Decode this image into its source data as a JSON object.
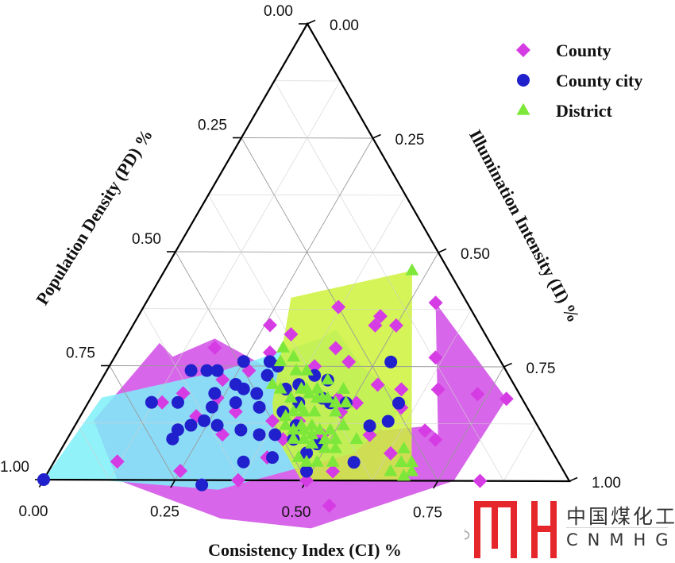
{
  "chart_data": {
    "type": "scatter",
    "subtype": "ternary",
    "axes": {
      "bottom": {
        "title": "Consistency Index (CI) %",
        "ticks": [
          "0.00",
          "0.25",
          "0.50",
          "0.75"
        ]
      },
      "left": {
        "title": "Population Density (PD) %",
        "ticks": [
          "0.00",
          "0.25",
          "0.50",
          "0.75",
          "1.00"
        ]
      },
      "right": {
        "title": "Illumination Intensity (II) %",
        "ticks": [
          "1.00",
          "0.75",
          "0.50",
          "0.25",
          "0.00"
        ]
      }
    },
    "grid": true,
    "legend_position": "top-right",
    "point_format": "[CI, PD, II]",
    "series": [
      {
        "name": "County",
        "marker": "diamond",
        "color": "#d63ce3",
        "fill_color": "#d14be6",
        "hull": [
          [
            0.55,
            0.06,
            0.39
          ],
          [
            0.7,
            0.2,
            0.1
          ],
          [
            0.67,
            0.21,
            0.12
          ],
          [
            0.59,
            0.3,
            0.11
          ],
          [
            0.17,
            0.52,
            0.31
          ],
          [
            0.11,
            0.62,
            0.27
          ],
          [
            0.07,
            0.63,
            0.3
          ],
          [
            0.03,
            0.84,
            0.13
          ],
          [
            0.14,
            0.86,
            0.0
          ],
          [
            0.33,
            0.75,
            0.0
          ],
          [
            0.5,
            0.6,
            0.0
          ],
          [
            0.78,
            0.22,
            0.0
          ],
          [
            0.79,
            0.03,
            0.18
          ]
        ],
        "points": [
          [
            0.5,
            0.16,
            0.34
          ],
          [
            0.37,
            0.25,
            0.38
          ],
          [
            0.55,
            0.06,
            0.39
          ],
          [
            0.46,
            0.2,
            0.34
          ],
          [
            0.46,
            0.18,
            0.36
          ],
          [
            0.12,
            0.84,
            0.04
          ],
          [
            0.25,
            0.73,
            0.02
          ],
          [
            0.37,
            0.63,
            0.0
          ],
          [
            0.51,
            0.54,
            0.05
          ],
          [
            0.5,
            0.5,
            0.0
          ],
          [
            0.54,
            0.44,
            0.02
          ],
          [
            0.4,
            0.55,
            0.05
          ],
          [
            0.41,
            0.5,
            0.09
          ],
          [
            0.37,
            0.5,
            0.13
          ],
          [
            0.29,
            0.56,
            0.15
          ],
          [
            0.29,
            0.61,
            0.1
          ],
          [
            0.22,
            0.64,
            0.14
          ],
          [
            0.24,
            0.58,
            0.18
          ],
          [
            0.23,
            0.55,
            0.22
          ],
          [
            0.17,
            0.64,
            0.19
          ],
          [
            0.14,
            0.69,
            0.17
          ],
          [
            0.27,
            0.49,
            0.24
          ],
          [
            0.18,
            0.53,
            0.29
          ],
          [
            0.26,
            0.4,
            0.34
          ],
          [
            0.31,
            0.37,
            0.32
          ],
          [
            0.39,
            0.36,
            0.25
          ],
          [
            0.41,
            0.3,
            0.29
          ],
          [
            0.45,
            0.29,
            0.26
          ],
          [
            0.47,
            0.35,
            0.18
          ],
          [
            0.51,
            0.32,
            0.17
          ],
          [
            0.57,
            0.33,
            0.1
          ],
          [
            0.53,
            0.26,
            0.21
          ],
          [
            0.42,
            0.45,
            0.13
          ],
          [
            0.48,
            0.42,
            0.1
          ],
          [
            0.49,
            0.36,
            0.15
          ],
          [
            0.6,
            0.24,
            0.16
          ],
          [
            0.63,
            0.31,
            0.06
          ],
          [
            0.7,
            0.21,
            0.09
          ],
          [
            0.67,
            0.22,
            0.11
          ],
          [
            0.58,
            0.22,
            0.2
          ],
          [
            0.65,
            0.15,
            0.2
          ],
          [
            0.61,
            0.12,
            0.27
          ],
          [
            0.73,
            0.08,
            0.19
          ],
          [
            0.79,
            0.03,
            0.18
          ],
          [
            0.83,
            0.17,
            0.0
          ],
          [
            0.29,
            0.43,
            0.28
          ]
        ]
      },
      {
        "name": "County city",
        "marker": "circle",
        "color": "#2020cc",
        "fill_color": "#7ff0f8",
        "hull": [
          [
            0.22,
            0.54,
            0.24
          ],
          [
            0.37,
            0.32,
            0.31
          ],
          [
            0.39,
            0.28,
            0.33
          ],
          [
            0.48,
            0.27,
            0.25
          ],
          [
            0.61,
            0.22,
            0.17
          ],
          [
            0.56,
            0.38,
            0.06
          ],
          [
            0.33,
            0.69,
            0.0
          ],
          [
            0.1,
            0.9,
            0.0
          ],
          [
            0.0,
            1.0,
            0.0
          ],
          [
            0.02,
            0.8,
            0.18
          ]
        ],
        "points": [
          [
            0.0,
            1.0,
            0.0
          ],
          [
            0.53,
            0.21,
            0.26
          ],
          [
            0.49,
            0.34,
            0.17
          ],
          [
            0.43,
            0.35,
            0.22
          ],
          [
            0.4,
            0.37,
            0.23
          ],
          [
            0.56,
            0.32,
            0.12
          ],
          [
            0.59,
            0.24,
            0.17
          ],
          [
            0.59,
            0.28,
            0.13
          ],
          [
            0.57,
            0.39,
            0.04
          ],
          [
            0.3,
            0.71,
            0.0
          ],
          [
            0.36,
            0.6,
            0.04
          ],
          [
            0.27,
            0.61,
            0.12
          ],
          [
            0.24,
            0.63,
            0.13
          ],
          [
            0.2,
            0.69,
            0.11
          ],
          [
            0.2,
            0.71,
            0.09
          ],
          [
            0.22,
            0.66,
            0.12
          ],
          [
            0.23,
            0.58,
            0.19
          ],
          [
            0.32,
            0.57,
            0.11
          ],
          [
            0.36,
            0.54,
            0.1
          ],
          [
            0.41,
            0.54,
            0.05
          ],
          [
            0.39,
            0.51,
            0.1
          ],
          [
            0.33,
            0.51,
            0.16
          ],
          [
            0.26,
            0.53,
            0.21
          ],
          [
            0.31,
            0.5,
            0.19
          ],
          [
            0.38,
            0.47,
            0.15
          ],
          [
            0.48,
            0.44,
            0.08
          ],
          [
            0.49,
            0.49,
            0.02
          ],
          [
            0.12,
            0.71,
            0.17
          ],
          [
            0.17,
            0.66,
            0.17
          ],
          [
            0.16,
            0.6,
            0.24
          ],
          [
            0.19,
            0.57,
            0.24
          ],
          [
            0.25,
            0.49,
            0.26
          ],
          [
            0.28,
            0.52,
            0.2
          ],
          [
            0.3,
            0.44,
            0.26
          ],
          [
            0.31,
            0.46,
            0.23
          ],
          [
            0.32,
            0.43,
            0.25
          ],
          [
            0.4,
            0.43,
            0.17
          ],
          [
            0.42,
            0.46,
            0.12
          ],
          [
            0.43,
            0.48,
            0.09
          ],
          [
            0.47,
            0.47,
            0.06
          ],
          [
            0.36,
            0.44,
            0.2
          ],
          [
            0.38,
            0.41,
            0.21
          ],
          [
            0.44,
            0.38,
            0.18
          ],
          [
            0.46,
            0.37,
            0.17
          ],
          [
            0.21,
            0.55,
            0.24
          ],
          [
            0.28,
            0.55,
            0.17
          ],
          [
            0.24,
            0.6,
            0.16
          ]
        ]
      },
      {
        "name": "District",
        "marker": "triangle",
        "color": "#7ee83a",
        "fill_color": "#ccf23a",
        "hull": [
          [
            0.47,
            0.07,
            0.46
          ],
          [
            0.69,
            0.29,
            0.02
          ],
          [
            0.68,
            0.32,
            0.0
          ],
          [
            0.49,
            0.51,
            0.0
          ],
          [
            0.39,
            0.51,
            0.1
          ],
          [
            0.35,
            0.48,
            0.17
          ],
          [
            0.27,
            0.33,
            0.4
          ]
        ],
        "points": [
          [
            0.47,
            0.07,
            0.46
          ],
          [
            0.38,
            0.44,
            0.18
          ],
          [
            0.44,
            0.38,
            0.18
          ],
          [
            0.41,
            0.4,
            0.19
          ],
          [
            0.4,
            0.4,
            0.2
          ],
          [
            0.42,
            0.38,
            0.2
          ],
          [
            0.43,
            0.39,
            0.18
          ],
          [
            0.45,
            0.37,
            0.18
          ],
          [
            0.47,
            0.36,
            0.17
          ],
          [
            0.48,
            0.37,
            0.15
          ],
          [
            0.44,
            0.41,
            0.15
          ],
          [
            0.42,
            0.43,
            0.15
          ],
          [
            0.4,
            0.45,
            0.15
          ],
          [
            0.39,
            0.47,
            0.14
          ],
          [
            0.4,
            0.48,
            0.12
          ],
          [
            0.42,
            0.47,
            0.11
          ],
          [
            0.44,
            0.45,
            0.11
          ],
          [
            0.47,
            0.42,
            0.11
          ],
          [
            0.49,
            0.4,
            0.11
          ],
          [
            0.47,
            0.45,
            0.08
          ],
          [
            0.46,
            0.44,
            0.1
          ],
          [
            0.45,
            0.46,
            0.09
          ],
          [
            0.49,
            0.42,
            0.09
          ],
          [
            0.51,
            0.4,
            0.09
          ],
          [
            0.52,
            0.41,
            0.07
          ],
          [
            0.5,
            0.43,
            0.07
          ],
          [
            0.48,
            0.48,
            0.04
          ],
          [
            0.46,
            0.49,
            0.05
          ],
          [
            0.43,
            0.48,
            0.09
          ],
          [
            0.45,
            0.43,
            0.12
          ],
          [
            0.5,
            0.46,
            0.04
          ],
          [
            0.53,
            0.43,
            0.04
          ],
          [
            0.43,
            0.35,
            0.22
          ],
          [
            0.47,
            0.33,
            0.2
          ],
          [
            0.49,
            0.34,
            0.17
          ],
          [
            0.43,
            0.45,
            0.12
          ],
          [
            0.33,
            0.46,
            0.21
          ],
          [
            0.35,
            0.45,
            0.2
          ],
          [
            0.32,
            0.42,
            0.26
          ],
          [
            0.31,
            0.4,
            0.29
          ],
          [
            0.34,
            0.39,
            0.27
          ],
          [
            0.36,
            0.4,
            0.24
          ],
          [
            0.38,
            0.38,
            0.24
          ],
          [
            0.51,
            0.37,
            0.12
          ],
          [
            0.55,
            0.36,
            0.09
          ],
          [
            0.39,
            0.41,
            0.2
          ],
          [
            0.41,
            0.43,
            0.16
          ],
          [
            0.66,
            0.3,
            0.04
          ],
          [
            0.65,
            0.28,
            0.07
          ],
          [
            0.68,
            0.28,
            0.04
          ],
          [
            0.68,
            0.31,
            0.01
          ],
          [
            0.65,
            0.33,
            0.02
          ],
          [
            0.69,
            0.29,
            0.02
          ]
        ]
      }
    ]
  },
  "watermark": {
    "icon": "wechat-icon",
    "logo": "MH-logo",
    "cn": "中国煤化工",
    "en": "CNMHG",
    "logo_color": "#e5262b"
  }
}
